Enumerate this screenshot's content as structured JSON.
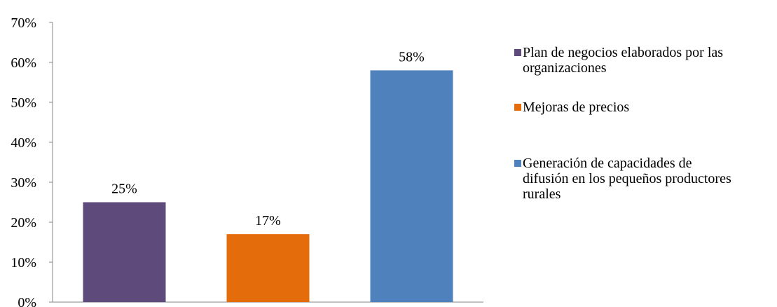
{
  "chart_data": {
    "type": "bar",
    "categories": [
      "Plan de negocios elaborados por las organizaciones",
      "Mejoras de precios",
      "Generación de capacidades de difusión en los pequeños productores rurales"
    ],
    "values": [
      25,
      17,
      58
    ],
    "value_labels": [
      "25%",
      "17%",
      "58%"
    ],
    "colors": [
      "#5f4b7b",
      "#e46c0a",
      "#4f81bd"
    ],
    "yticks": [
      "0%",
      "10%",
      "20%",
      "30%",
      "40%",
      "50%",
      "60%",
      "70%"
    ],
    "ylim": [
      0,
      70
    ],
    "legend_position": "right",
    "grid": false
  },
  "legend": {
    "items": [
      {
        "label_lines": [
          "Plan de negocios elaborados por las",
          "organizaciones"
        ],
        "color": "#5f4b7b"
      },
      {
        "label_lines": [
          "Mejoras de precios"
        ],
        "color": "#e46c0a"
      },
      {
        "label_lines": [
          "Generación de capacidades de",
          "difusión en los pequeños productores",
          "rurales"
        ],
        "color": "#4f81bd"
      }
    ]
  }
}
